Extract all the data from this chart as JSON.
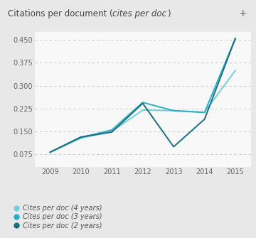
{
  "title_normal": "Citations per document (",
  "title_italic": "cites per doc",
  "title_end": ")",
  "years": [
    2009,
    2010,
    2011,
    2012,
    2013,
    2014,
    2015
  ],
  "series": {
    "4years": [
      0.082,
      0.128,
      0.15,
      0.22,
      0.218,
      0.213,
      0.35
    ],
    "3years": [
      0.082,
      0.13,
      0.155,
      0.245,
      0.218,
      0.212,
      0.455
    ],
    "2years": [
      0.082,
      0.132,
      0.148,
      0.242,
      0.1,
      0.19,
      0.455
    ]
  },
  "colors": {
    "4years": "#72cfe0",
    "3years": "#2aaec8",
    "2years": "#1a6e80"
  },
  "yticks": [
    0.075,
    0.15,
    0.225,
    0.3,
    0.375,
    0.45
  ],
  "ylim": [
    0.035,
    0.475
  ],
  "xlim": [
    2008.5,
    2015.5
  ],
  "bg_color": "#e8e8e8",
  "header_color": "#e0e0e0",
  "plot_bg": "#f8f8f8",
  "legend": [
    {
      "label": "Cites per doc (4 years)",
      "color": "#72cfe0"
    },
    {
      "label": "Cites per doc (3 years)",
      "color": "#2aaec8"
    },
    {
      "label": "Cites per doc (2 years)",
      "color": "#1a6e80"
    }
  ],
  "title_fontsize": 8.5,
  "tick_fontsize": 7,
  "legend_fontsize": 7
}
